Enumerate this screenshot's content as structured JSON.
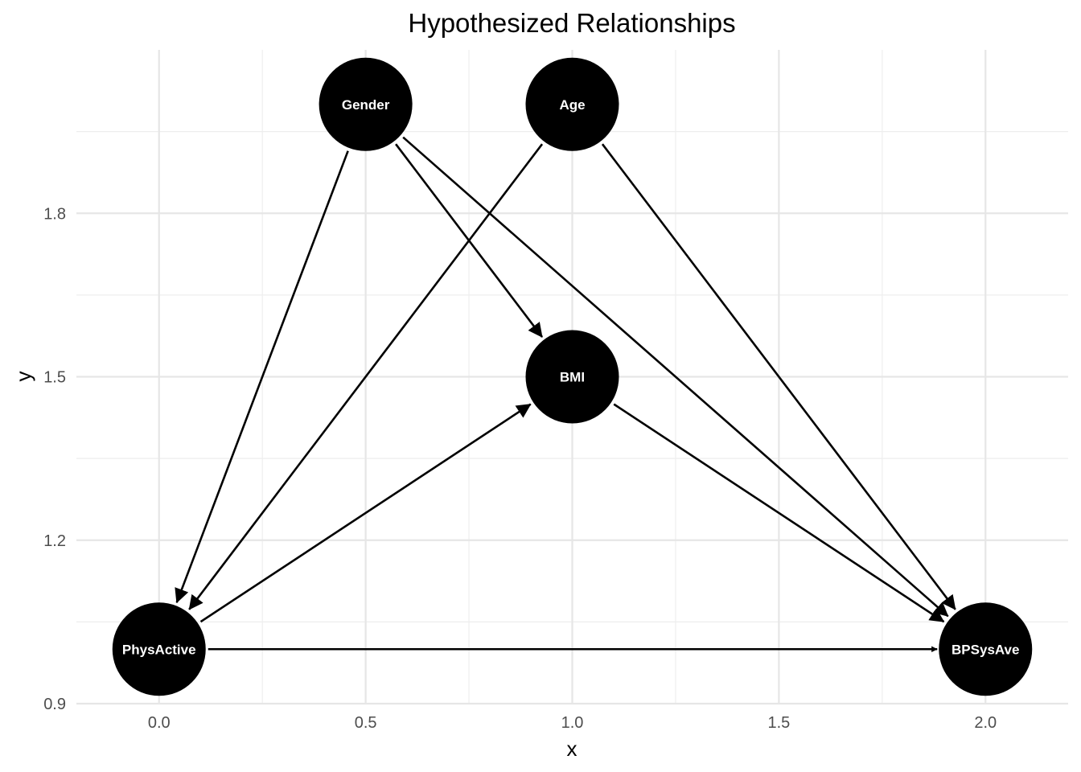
{
  "chart_data": {
    "type": "dag",
    "title": "Hypothesized Relationships",
    "xlabel": "x",
    "ylabel": "y",
    "xlim": [
      -0.2,
      2.2
    ],
    "ylim": [
      0.9,
      2.1
    ],
    "x_ticks": [
      0.0,
      0.5,
      1.0,
      1.5,
      2.0
    ],
    "x_tick_labels": [
      "0.0",
      "0.5",
      "1.0",
      "1.5",
      "2.0"
    ],
    "y_ticks": [
      0.9,
      1.2,
      1.5,
      1.8
    ],
    "y_tick_labels": [
      "0.9",
      "1.2",
      "1.5",
      "1.8"
    ],
    "grid": true,
    "node_color": "#000000",
    "label_color": "#ffffff",
    "edge_color": "#000000",
    "nodes": [
      {
        "id": "Gender",
        "label": "Gender",
        "x": 0.5,
        "y": 2.0
      },
      {
        "id": "Age",
        "label": "Age",
        "x": 1.0,
        "y": 2.0
      },
      {
        "id": "BMI",
        "label": "BMI",
        "x": 1.0,
        "y": 1.5
      },
      {
        "id": "PhysActive",
        "label": "PhysActive",
        "x": 0.0,
        "y": 1.0
      },
      {
        "id": "BPSysAve",
        "label": "BPSysAve",
        "x": 2.0,
        "y": 1.0
      }
    ],
    "edges": [
      {
        "from": "Gender",
        "to": "PhysActive"
      },
      {
        "from": "Gender",
        "to": "BMI"
      },
      {
        "from": "Gender",
        "to": "BPSysAve"
      },
      {
        "from": "Age",
        "to": "PhysActive"
      },
      {
        "from": "Age",
        "to": "BPSysAve"
      },
      {
        "from": "PhysActive",
        "to": "BMI"
      },
      {
        "from": "BMI",
        "to": "BPSysAve"
      },
      {
        "from": "PhysActive",
        "to": "BPSysAve"
      }
    ]
  }
}
